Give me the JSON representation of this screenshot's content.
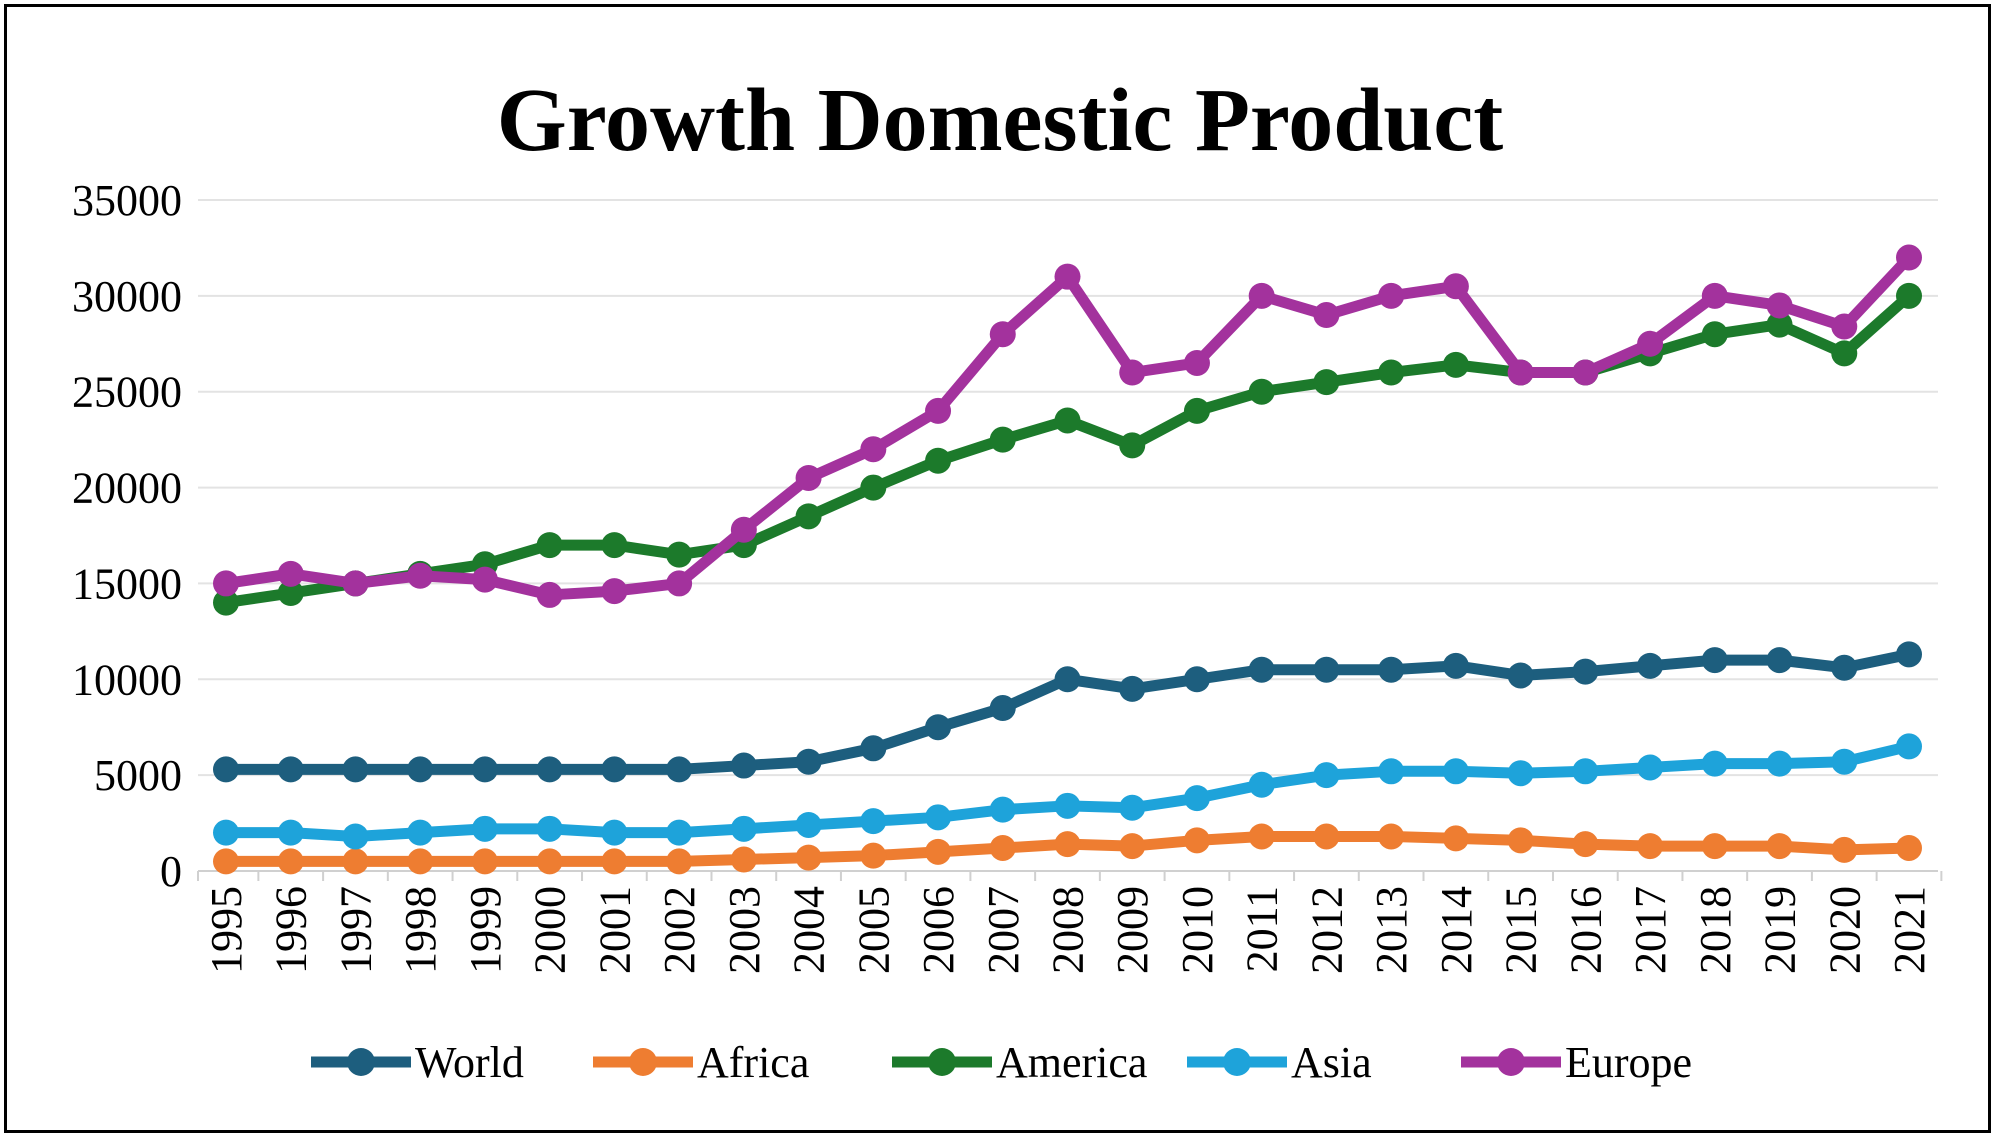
{
  "chart_data": {
    "type": "line",
    "title": "Growth Domestic Product",
    "xlabel": "",
    "ylabel": "",
    "ylim": [
      0,
      35000
    ],
    "yticks": [
      0,
      5000,
      10000,
      15000,
      20000,
      25000,
      30000,
      35000
    ],
    "grid": true,
    "legend_position": "bottom",
    "categories": [
      "1995",
      "1996",
      "1997",
      "1998",
      "1999",
      "2000",
      "2001",
      "2002",
      "2003",
      "2004",
      "2005",
      "2006",
      "2007",
      "2008",
      "2009",
      "2010",
      "2011",
      "2012",
      "2013",
      "2014",
      "2015",
      "2016",
      "2017",
      "2018",
      "2019",
      "2020",
      "2021"
    ],
    "series": [
      {
        "name": "World",
        "color": "#1d5e7e",
        "values": [
          5300,
          5300,
          5300,
          5300,
          5300,
          5300,
          5300,
          5300,
          5500,
          5700,
          6400,
          7500,
          8500,
          10000,
          9500,
          10000,
          10500,
          10500,
          10500,
          10700,
          10200,
          10400,
          10700,
          11000,
          11000,
          10600,
          11300
        ]
      },
      {
        "name": "Africa",
        "color": "#ee7d31",
        "values": [
          500,
          500,
          500,
          500,
          500,
          500,
          500,
          500,
          600,
          700,
          800,
          1000,
          1200,
          1400,
          1300,
          1600,
          1800,
          1800,
          1800,
          1700,
          1600,
          1400,
          1300,
          1300,
          1300,
          1100,
          1200
        ]
      },
      {
        "name": "America",
        "color": "#1c7a2b",
        "values": [
          14000,
          14500,
          15000,
          15500,
          16000,
          17000,
          17000,
          16500,
          17000,
          18500,
          20000,
          21400,
          22500,
          23500,
          22200,
          24000,
          25000,
          25500,
          26000,
          26400,
          26000,
          26000,
          27000,
          28000,
          28500,
          27000,
          30000
        ]
      },
      {
        "name": "Asia",
        "color": "#1ea3da",
        "values": [
          2000,
          2000,
          1800,
          2000,
          2200,
          2200,
          2000,
          2000,
          2200,
          2400,
          2600,
          2800,
          3200,
          3400,
          3300,
          3800,
          4500,
          5000,
          5200,
          5200,
          5100,
          5200,
          5400,
          5600,
          5600,
          5700,
          6500
        ]
      },
      {
        "name": "Europe",
        "color": "#a3329d",
        "values": [
          15000,
          15500,
          15000,
          15400,
          15200,
          14400,
          14600,
          15000,
          17800,
          20500,
          22000,
          24000,
          28000,
          31000,
          26000,
          26500,
          30000,
          29000,
          30000,
          30500,
          26000,
          26000,
          27500,
          30000,
          29500,
          28400,
          32000
        ]
      }
    ]
  }
}
